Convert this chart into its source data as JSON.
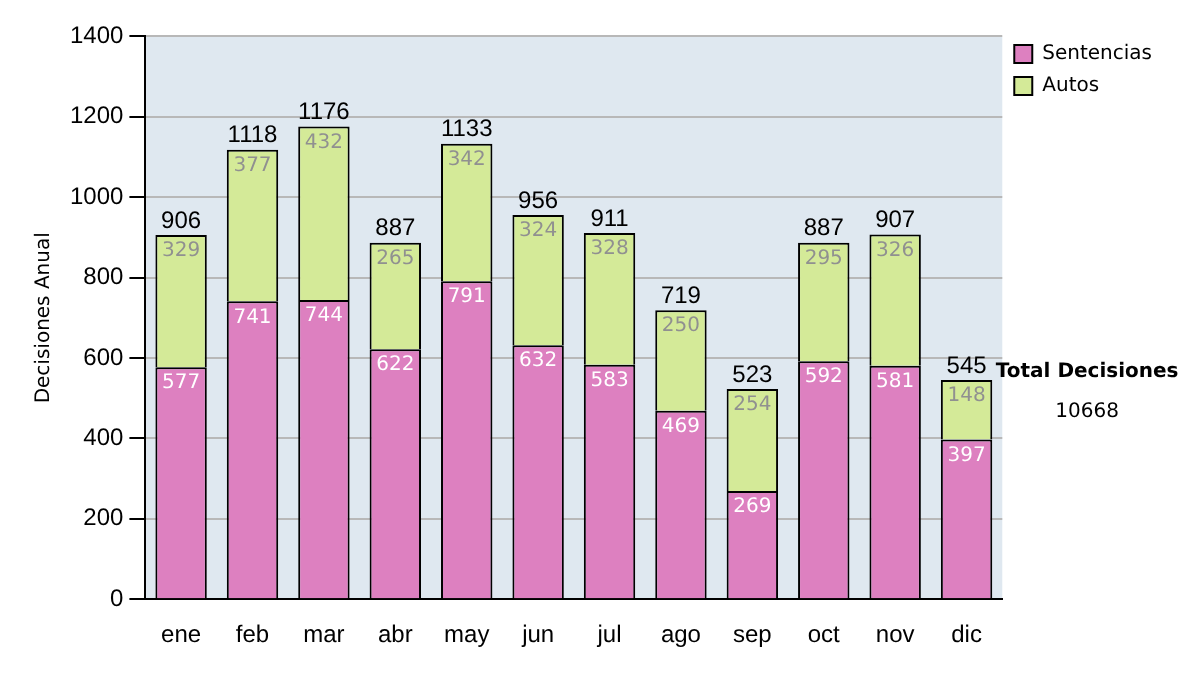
{
  "chart_data": {
    "type": "bar",
    "stacked": true,
    "ylabel": "Decisiones Anual",
    "categories": [
      "ene",
      "feb",
      "mar",
      "abr",
      "may",
      "jun",
      "jul",
      "ago",
      "sep",
      "oct",
      "nov",
      "dic"
    ],
    "series": [
      {
        "name": "Sentencias",
        "color": "#dd80c0",
        "values": [
          577,
          741,
          744,
          622,
          791,
          632,
          583,
          469,
          269,
          592,
          581,
          397
        ]
      },
      {
        "name": "Autos",
        "color": "#d4ea98",
        "values": [
          329,
          377,
          432,
          265,
          342,
          324,
          328,
          250,
          254,
          295,
          326,
          148
        ]
      }
    ],
    "totals": [
      "906",
      "1118",
      "1176",
      "887",
      "1133",
      "956",
      "911",
      "719",
      "523",
      "887",
      "907",
      "545"
    ],
    "data_labels": true,
    "ylim": [
      0,
      1400
    ],
    "yticks": [
      0,
      200,
      400,
      600,
      800,
      1000,
      1200,
      1400
    ],
    "grid": "y",
    "legend": "right",
    "annotations": [
      "Total Decisiones",
      "10668"
    ]
  }
}
